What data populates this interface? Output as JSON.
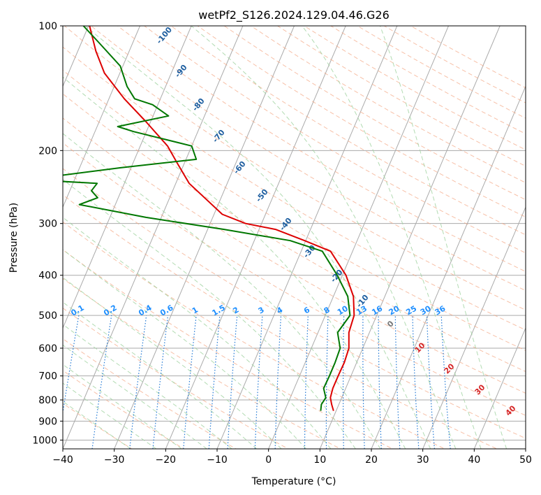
{
  "chart_data": {
    "type": "line",
    "title": "wetPf2_S126.2024.129.04.46.G26",
    "xlabel": "Temperature (°C)",
    "ylabel": "Pressure (hPa)",
    "xlim": [
      -40,
      50
    ],
    "ylim": [
      1050,
      100
    ],
    "y_scale": "log",
    "x_ticks": [
      "−40",
      "−30",
      "−20",
      "−10",
      "0",
      "10",
      "20",
      "30",
      "40",
      "50"
    ],
    "y_ticks": [
      "1000",
      "900",
      "800",
      "700",
      "600",
      "500",
      "400",
      "300",
      "200",
      "100"
    ],
    "grid": true,
    "series": [
      {
        "color": "#dd0000",
        "points": [
          [
            9.5,
            850
          ],
          [
            8.6,
            820
          ],
          [
            7.8,
            790
          ],
          [
            7.5,
            750
          ],
          [
            7.5,
            700
          ],
          [
            7.6,
            650
          ],
          [
            7.3,
            600
          ],
          [
            6.0,
            550
          ],
          [
            5.6,
            500
          ],
          [
            3.9,
            450
          ],
          [
            0.7,
            400
          ],
          [
            -4.3,
            350
          ],
          [
            -10.2,
            330
          ],
          [
            -16.8,
            310
          ],
          [
            -23.1,
            300
          ],
          [
            -28.4,
            285
          ],
          [
            -32.2,
            265
          ],
          [
            -37.4,
            240
          ],
          [
            -41.3,
            215
          ],
          [
            -44.7,
            195
          ],
          [
            -51.0,
            170
          ],
          [
            -57.0,
            150
          ],
          [
            -63.0,
            130
          ],
          [
            -66.5,
            115
          ],
          [
            -69.8,
            100
          ]
        ]
      },
      {
        "color": "#007700",
        "points": [
          [
            7.0,
            850
          ],
          [
            6.6,
            820
          ],
          [
            6.9,
            790
          ],
          [
            5.7,
            750
          ],
          [
            5.8,
            700
          ],
          [
            5.8,
            650
          ],
          [
            5.6,
            600
          ],
          [
            3.8,
            550
          ],
          [
            4.8,
            500
          ],
          [
            2.8,
            450
          ],
          [
            -1.0,
            400
          ],
          [
            -5.9,
            350
          ],
          [
            -13.0,
            330
          ],
          [
            -26.8,
            310
          ],
          [
            -43.0,
            290
          ],
          [
            -57.0,
            270
          ],
          [
            -54.0,
            260
          ],
          [
            -55.8,
            250
          ],
          [
            -55.3,
            240
          ],
          [
            -69.0,
            235
          ],
          [
            -52.0,
            220
          ],
          [
            -38.0,
            210
          ],
          [
            -40.0,
            195
          ],
          [
            -52.5,
            180
          ],
          [
            -56.0,
            175
          ],
          [
            -47.0,
            165
          ],
          [
            -51.0,
            155
          ],
          [
            -55.0,
            150
          ],
          [
            -57.5,
            140
          ],
          [
            -60.5,
            125
          ],
          [
            -66.5,
            110
          ],
          [
            -71.0,
            100
          ]
        ]
      }
    ],
    "dry_adiabat_labels": [
      "-100",
      "-90",
      "-80",
      "-70",
      "-60",
      "-50",
      "-40",
      "-30",
      "-20",
      "-10"
    ],
    "mixing_ratio_labels": [
      "0.1",
      "0.2",
      "0.4",
      "0.6",
      "1",
      "1.5",
      "2",
      "3",
      "4",
      "6",
      "8",
      "10",
      "13",
      "16",
      "20",
      "25",
      "30",
      "36"
    ],
    "moist_adiabat_labels": [
      "0",
      "10",
      "20",
      "30",
      "40"
    ],
    "colors": {
      "temperature": "#dd0000",
      "dewpoint": "#007700",
      "isotherms": "#aaaaaa",
      "dry_adiabats": "#f4a582",
      "moist_adiabats": "#9fd29f",
      "mixing_ratio": "#1f77d4",
      "dry_adiabat_label": "#1f5fa0",
      "mixing_ratio_label": "#1f8fff",
      "moist_adiabat_label": "#d62728"
    }
  }
}
